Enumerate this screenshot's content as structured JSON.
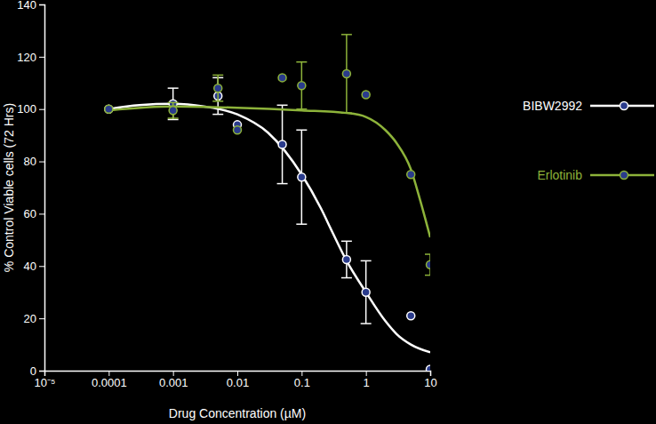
{
  "chart_data": {
    "type": "line",
    "x_label": "Drug Concentration (µM)",
    "y_label": "% Control Viable cells (72 Hrs)",
    "log": "x",
    "legend": "right",
    "xlim": [
      1e-05,
      10
    ],
    "xticks": [
      {
        "value": 1e-05,
        "label": "10⁻⁵"
      },
      0.0001,
      0.001,
      0.01,
      0.1,
      1,
      10
    ],
    "ylim": [
      0,
      140
    ],
    "yticks": [
      0,
      20,
      40,
      60,
      80,
      100,
      120,
      140
    ],
    "series": [
      {
        "name": "BIBW2992",
        "color": "#ffffff",
        "marker": "circle",
        "x": [
          0.0001,
          0.001,
          0.005,
          0.01,
          0.05,
          0.1,
          0.5,
          1,
          5,
          10
        ],
        "values": [
          100,
          102,
          105,
          94,
          86.5,
          74,
          42.5,
          30,
          21,
          0.5
        ],
        "error": [
          null,
          6,
          7,
          null,
          15,
          18,
          7,
          12,
          null,
          null
        ],
        "curve_x": [
          0.0001,
          0.0003,
          0.001,
          0.003,
          0.01,
          0.03,
          0.1,
          0.2,
          0.3,
          0.5,
          1,
          2,
          3,
          5,
          10
        ],
        "curve_values": [
          100,
          101.5,
          102,
          101,
          98,
          91,
          75,
          62,
          53,
          42,
          30,
          19,
          14,
          10,
          7
        ]
      },
      {
        "name": "Erlotinib",
        "color": "#8db33a",
        "marker": "circle",
        "x": [
          0.0001,
          0.001,
          0.005,
          0.01,
          0.05,
          0.1,
          0.5,
          1,
          5,
          10
        ],
        "values": [
          100,
          99.5,
          108,
          92,
          112,
          109,
          113.5,
          105.5,
          75,
          40.5
        ],
        "error": [
          null,
          3,
          5,
          null,
          null,
          9,
          15,
          null,
          null,
          4
        ],
        "curve_x": [
          0.0001,
          0.001,
          0.01,
          0.1,
          0.5,
          1,
          2,
          3,
          5,
          7,
          10
        ],
        "curve_values": [
          99.5,
          101,
          100.5,
          99.5,
          98.5,
          97,
          92,
          87,
          77,
          65,
          51
        ]
      }
    ]
  }
}
